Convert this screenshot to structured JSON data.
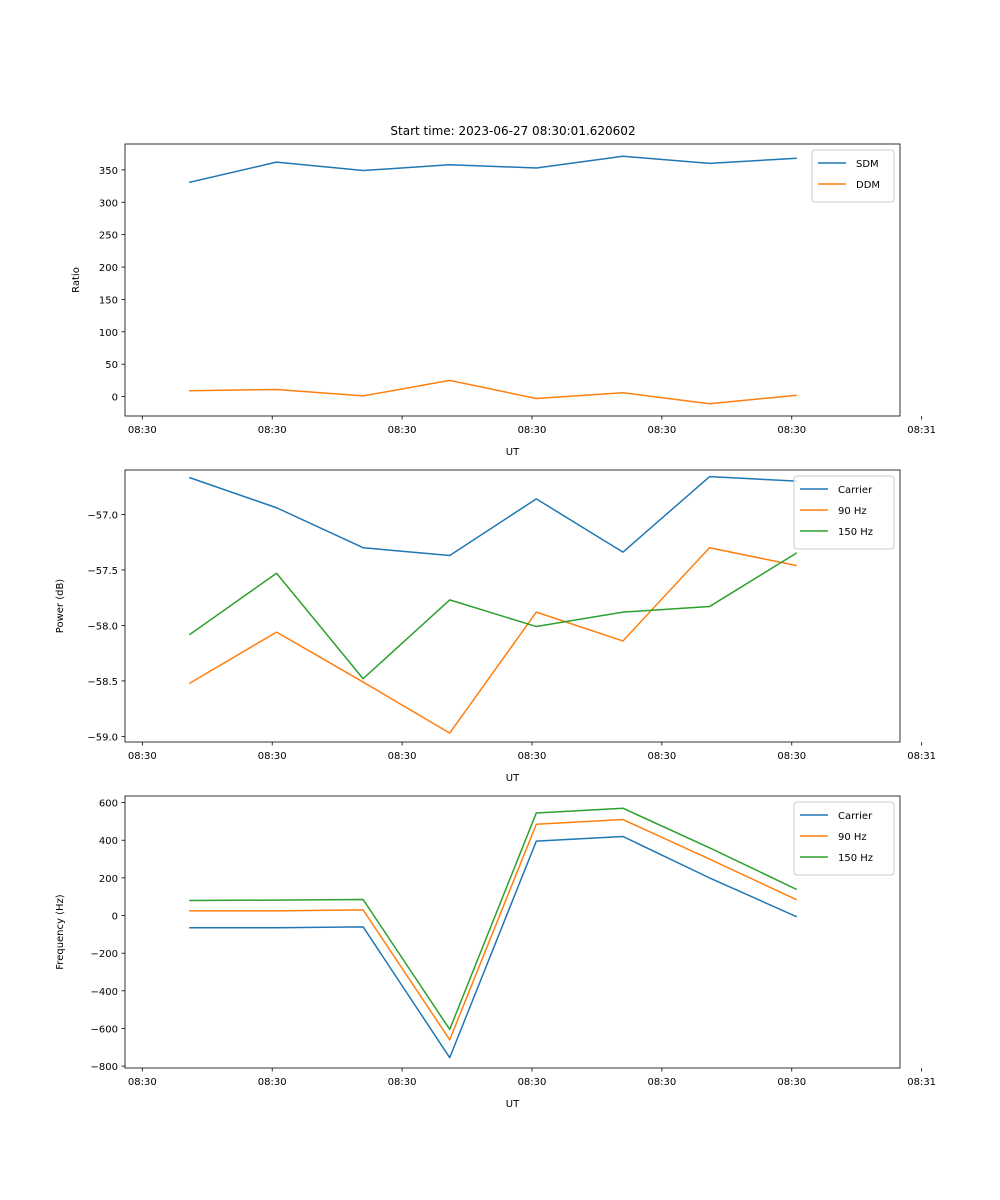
{
  "figure": {
    "title": "Start time: 2023-06-27 08:30:01.620602"
  },
  "colors": {
    "blue": "#1f77b4",
    "orange": "#ff7f0e",
    "green": "#2ca02c",
    "axis": "#000000",
    "legend_border": "#cccccc"
  },
  "chart_data": [
    {
      "type": "line",
      "title": "Start time: 2023-06-27 08:30:01.620602",
      "xlabel": "UT",
      "ylabel": "Ratio",
      "x": [
        1,
        2,
        3,
        4,
        5,
        6,
        7,
        8
      ],
      "xlim": [
        0.25,
        9.2
      ],
      "x_ticks": [
        {
          "v": 0.45,
          "label": "08:30"
        },
        {
          "v": 1.95,
          "label": "08:30"
        },
        {
          "v": 3.45,
          "label": "08:30"
        },
        {
          "v": 4.95,
          "label": "08:30"
        },
        {
          "v": 6.45,
          "label": "08:30"
        },
        {
          "v": 7.95,
          "label": "08:30"
        },
        {
          "v": 9.45,
          "label": "08:31"
        }
      ],
      "ylim": [
        -30,
        390
      ],
      "y_ticks": [
        0,
        50,
        100,
        150,
        200,
        250,
        300,
        350
      ],
      "legend": "upper right",
      "grid": false,
      "series": [
        {
          "name": "SDM",
          "color": "#1f77b4",
          "values": [
            331,
            362,
            349,
            358,
            353,
            371,
            360,
            368
          ]
        },
        {
          "name": "DDM",
          "color": "#ff7f0e",
          "values": [
            9,
            11,
            1,
            25,
            -3,
            6,
            -11,
            2
          ]
        }
      ]
    },
    {
      "type": "line",
      "title": "",
      "xlabel": "UT",
      "ylabel": "Power (dB)",
      "x": [
        1,
        2,
        3,
        4,
        5,
        6,
        7,
        8
      ],
      "xlim": [
        0.25,
        9.2
      ],
      "x_ticks": [
        {
          "v": 0.45,
          "label": "08:30"
        },
        {
          "v": 1.95,
          "label": "08:30"
        },
        {
          "v": 3.45,
          "label": "08:30"
        },
        {
          "v": 4.95,
          "label": "08:30"
        },
        {
          "v": 6.45,
          "label": "08:30"
        },
        {
          "v": 7.95,
          "label": "08:30"
        },
        {
          "v": 9.45,
          "label": "08:31"
        }
      ],
      "ylim": [
        -59.05,
        -56.6
      ],
      "y_ticks": [
        {
          "v": -59.0,
          "label": "−59.0"
        },
        {
          "v": -58.5,
          "label": "−58.5"
        },
        {
          "v": -58.0,
          "label": "−58.0"
        },
        {
          "v": -57.5,
          "label": "−57.5"
        },
        {
          "v": -57.0,
          "label": "−57.0"
        }
      ],
      "legend": "upper right",
      "grid": false,
      "series": [
        {
          "name": "Carrier",
          "color": "#1f77b4",
          "values": [
            -56.67,
            -56.94,
            -57.3,
            -57.37,
            -56.86,
            -57.34,
            -56.66,
            -56.7
          ]
        },
        {
          "name": "90 Hz",
          "color": "#ff7f0e",
          "values": [
            -58.52,
            -58.06,
            -58.51,
            -58.97,
            -57.88,
            -58.14,
            -57.3,
            -57.46
          ]
        },
        {
          "name": "150 Hz",
          "color": "#2ca02c",
          "values": [
            -58.08,
            -57.53,
            -58.48,
            -57.77,
            -58.01,
            -57.88,
            -57.83,
            -57.35
          ]
        }
      ]
    },
    {
      "type": "line",
      "title": "",
      "xlabel": "UT",
      "ylabel": "Frequency (Hz)",
      "x": [
        1,
        2,
        3,
        4,
        5,
        6,
        7,
        8
      ],
      "xlim": [
        0.25,
        9.2
      ],
      "x_ticks": [
        {
          "v": 0.45,
          "label": "08:30"
        },
        {
          "v": 1.95,
          "label": "08:30"
        },
        {
          "v": 3.45,
          "label": "08:30"
        },
        {
          "v": 4.95,
          "label": "08:30"
        },
        {
          "v": 6.45,
          "label": "08:30"
        },
        {
          "v": 7.95,
          "label": "08:30"
        },
        {
          "v": 9.45,
          "label": "08:31"
        }
      ],
      "ylim": [
        -810,
        635
      ],
      "y_ticks": [
        {
          "v": -800,
          "label": "−800"
        },
        {
          "v": -600,
          "label": "−600"
        },
        {
          "v": -400,
          "label": "−400"
        },
        {
          "v": -200,
          "label": "−200"
        },
        {
          "v": 0,
          "label": "0"
        },
        {
          "v": 200,
          "label": "200"
        },
        {
          "v": 400,
          "label": "400"
        },
        {
          "v": 600,
          "label": "600"
        }
      ],
      "legend": "upper right",
      "grid": false,
      "series": [
        {
          "name": "Carrier",
          "color": "#1f77b4",
          "values": [
            -65,
            -65,
            -60,
            -755,
            395,
            420,
            200,
            -5
          ]
        },
        {
          "name": "90 Hz",
          "color": "#ff7f0e",
          "values": [
            25,
            25,
            30,
            -660,
            485,
            510,
            300,
            85
          ]
        },
        {
          "name": "150 Hz",
          "color": "#2ca02c",
          "values": [
            80,
            82,
            85,
            -605,
            545,
            570,
            360,
            140
          ]
        }
      ]
    }
  ]
}
